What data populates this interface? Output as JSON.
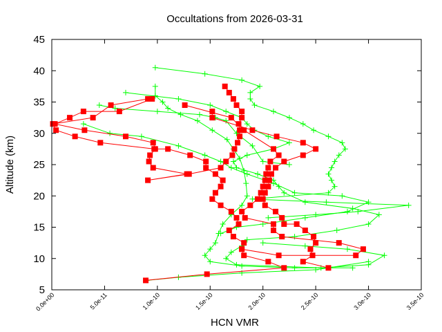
{
  "chart_data": {
    "type": "line",
    "title": "Occultations from 2026-03-31",
    "xlabel": "HCN VMR",
    "ylabel": "Altitude (km)",
    "xlim": [
      0,
      3.5e-10
    ],
    "ylim": [
      5,
      45
    ],
    "grid": false,
    "x_ticks": [
      0,
      5e-11,
      1e-10,
      1.5e-10,
      2e-10,
      2.5e-10,
      3e-10,
      3.5e-10
    ],
    "x_tick_labels": [
      "0.0e+00",
      "5.0e-11",
      "1.0e-10",
      "1.5e-10",
      "2.0e-10",
      "2.5e-10",
      "3.0e-10",
      "3.5e-10"
    ],
    "y_ticks": [
      5,
      10,
      15,
      20,
      25,
      30,
      35,
      40,
      45
    ],
    "y_tick_labels": [
      "5",
      "10",
      "15",
      "20",
      "25",
      "30",
      "35",
      "40",
      "45"
    ],
    "colors": {
      "red_series": "#ff0000",
      "green_series": "#00ff00"
    },
    "series": [
      {
        "color": "#ff0000",
        "marker": "square",
        "points": [
          [
            9.1e-11,
            35.5
          ],
          [
            5.6e-11,
            34.5
          ],
          [
            3.9e-11,
            32.5
          ],
          [
            1e-12,
            31.5
          ],
          [
            4e-12,
            30.5
          ],
          [
            2.2e-11,
            29.5
          ],
          [
            4.6e-11,
            28.5
          ],
          [
            9.7e-11,
            27.5
          ],
          [
            1.1e-10,
            27.5
          ],
          [
            1.31e-10,
            26.5
          ],
          [
            1.46e-10,
            25.5
          ],
          [
            1.46e-10,
            24.5
          ],
          [
            1.55e-10,
            23.5
          ],
          [
            1.62e-10,
            22.5
          ],
          [
            1.6e-10,
            21.5
          ],
          [
            1.55e-10,
            20.5
          ],
          [
            1.52e-10,
            19.5
          ],
          [
            1.6e-10,
            18.5
          ],
          [
            1.7e-10,
            17.5
          ],
          [
            1.75e-10,
            16.5
          ],
          [
            1.77e-10,
            15.5
          ],
          [
            1.68e-10,
            14.5
          ],
          [
            1.72e-10,
            13.5
          ],
          [
            1.82e-10,
            12.5
          ],
          [
            1.8e-10,
            11.5
          ],
          [
            1.82e-10,
            10.5
          ],
          [
            2.05e-10,
            9.5
          ],
          [
            2.2e-10,
            8.5
          ],
          [
            1.47e-10,
            7.5
          ],
          [
            8.9e-11,
            6.5
          ]
        ]
      },
      {
        "color": "#ff0000",
        "marker": "square",
        "points": [
          [
            9.5e-11,
            35.5
          ],
          [
            6.4e-11,
            33.5
          ],
          [
            3e-11,
            33.5
          ],
          [
            1.7e-11,
            32.5
          ],
          [
            3e-12,
            31.5
          ],
          [
            3.1e-11,
            30.5
          ],
          [
            7e-11,
            29.5
          ],
          [
            9.6e-11,
            28.5
          ],
          [
            9.8e-11,
            27.5
          ],
          [
            9.3e-11,
            26.5
          ],
          [
            9.2e-11,
            25.5
          ],
          [
            9.6e-11,
            24.5
          ],
          [
            1.28e-10,
            23.5
          ],
          [
            9.1e-11,
            22.5
          ],
          [
            1.3e-10,
            23.5
          ],
          [
            1.6e-10,
            24.5
          ],
          [
            1.65e-10,
            25.5
          ],
          [
            1.71e-10,
            26.5
          ],
          [
            1.73e-10,
            27.5
          ],
          [
            1.76e-10,
            28.5
          ],
          [
            1.78e-10,
            29.5
          ],
          [
            1.78e-10,
            30.5
          ],
          [
            1.77e-10,
            31.5
          ],
          [
            1.8e-10,
            32.5
          ],
          [
            1.8e-10,
            33.5
          ],
          [
            1.75e-10,
            34.5
          ],
          [
            1.72e-10,
            35.5
          ],
          [
            1.68e-10,
            36.5
          ],
          [
            1.64e-10,
            37.5
          ]
        ]
      },
      {
        "color": "#ff0000",
        "marker": "square",
        "points": [
          [
            1.52e-10,
            33.5
          ],
          [
            1.52e-10,
            32.5
          ],
          [
            1.9e-10,
            30.5
          ],
          [
            2.13e-10,
            29.5
          ],
          [
            2.38e-10,
            28.5
          ],
          [
            2.5e-10,
            27.5
          ],
          [
            2.38e-10,
            26.5
          ],
          [
            2.2e-10,
            25.5
          ],
          [
            2.12e-10,
            24.5
          ],
          [
            2.08e-10,
            23.5
          ],
          [
            2.06e-10,
            22.5
          ],
          [
            2.05e-10,
            21.5
          ],
          [
            2.02e-10,
            20.5
          ],
          [
            2e-10,
            19.5
          ],
          [
            2.02e-10,
            18.5
          ],
          [
            2.12e-10,
            17.5
          ],
          [
            2.18e-10,
            16.5
          ],
          [
            2.2e-10,
            15.5
          ],
          [
            2.32e-10,
            15.5
          ],
          [
            2.4e-10,
            14.5
          ],
          [
            2.48e-10,
            13.5
          ],
          [
            2.5e-10,
            12.5
          ],
          [
            2.45e-10,
            11.5
          ],
          [
            2.47e-10,
            10.5
          ],
          [
            2.38e-10,
            9.5
          ],
          [
            2.62e-10,
            8.5
          ]
        ]
      },
      {
        "color": "#ff0000",
        "marker": "square",
        "points": [
          [
            1.26e-10,
            34.5
          ],
          [
            1.7e-10,
            32.5
          ],
          [
            1.82e-10,
            30.5
          ],
          [
            2.1e-10,
            27.5
          ],
          [
            2.15e-10,
            26.5
          ],
          [
            2.07e-10,
            25.5
          ],
          [
            2.05e-10,
            24.5
          ],
          [
            2.03e-10,
            23.5
          ],
          [
            2.02e-10,
            22.5
          ],
          [
            2e-10,
            21.5
          ],
          [
            1.98e-10,
            20.5
          ],
          [
            1.95e-10,
            19.5
          ],
          [
            1.88e-10,
            18.5
          ],
          [
            1.8e-10,
            17.5
          ],
          [
            1.83e-10,
            16.5
          ],
          [
            2.1e-10,
            15.5
          ],
          [
            2.1e-10,
            14.5
          ],
          [
            2.18e-10,
            13.5
          ],
          [
            2.72e-10,
            12.5
          ],
          [
            2.95e-10,
            11.5
          ],
          [
            2.88e-10,
            10.5
          ],
          [
            2.15e-10,
            10.5
          ],
          [
            1.8e-10,
            11.5
          ]
        ]
      },
      {
        "color": "#00ff00",
        "marker": "plus",
        "points": [
          [
            9.8e-11,
            40.5
          ],
          [
            1.45e-10,
            39.5
          ],
          [
            1.8e-10,
            38.5
          ],
          [
            1.97e-10,
            37.5
          ],
          [
            1.88e-10,
            36.5
          ],
          [
            1.88e-10,
            35.5
          ],
          [
            1.92e-10,
            34.5
          ],
          [
            2.1e-10,
            33.5
          ],
          [
            2.25e-10,
            32.5
          ],
          [
            2.38e-10,
            31.5
          ],
          [
            2.48e-10,
            30.5
          ],
          [
            2.62e-10,
            29.5
          ],
          [
            2.75e-10,
            28.5
          ],
          [
            2.78e-10,
            27.5
          ],
          [
            2.72e-10,
            26.5
          ],
          [
            2.68e-10,
            25.5
          ],
          [
            2.65e-10,
            24.5
          ],
          [
            2.62e-10,
            23.5
          ],
          [
            2.65e-10,
            22.5
          ],
          [
            2.68e-10,
            21.5
          ],
          [
            2.62e-10,
            20.5
          ],
          [
            1.9e-10,
            19.5
          ],
          [
            2.6e-10,
            19.0
          ],
          [
            3.38e-10,
            18.5
          ],
          [
            2.9e-10,
            17.5
          ],
          [
            2.5e-10,
            17.0
          ],
          [
            2.05e-10,
            16.5
          ]
        ]
      },
      {
        "color": "#00ff00",
        "marker": "plus",
        "points": [
          [
            7e-11,
            36.5
          ],
          [
            1.2e-10,
            35.5
          ],
          [
            1.5e-10,
            34.5
          ],
          [
            1.65e-10,
            33.5
          ],
          [
            1.8e-10,
            32.5
          ],
          [
            1.85e-10,
            31.5
          ],
          [
            1.92e-10,
            30.5
          ],
          [
            2.05e-10,
            29.5
          ],
          [
            2.25e-10,
            28.5
          ],
          [
            2.1e-10,
            27.5
          ],
          [
            1.85e-10,
            26.5
          ],
          [
            1.72e-10,
            25.5
          ],
          [
            1.75e-10,
            24.5
          ],
          [
            1.95e-10,
            23.5
          ],
          [
            2.1e-10,
            22.5
          ],
          [
            2.15e-10,
            21.5
          ],
          [
            2.2e-10,
            20.5
          ],
          [
            2.4e-10,
            19.0
          ],
          [
            2.85e-10,
            18.0
          ],
          [
            3.1e-10,
            17.0
          ],
          [
            3e-10,
            15.5
          ],
          [
            2.7e-10,
            14.5
          ],
          [
            2.3e-10,
            13.5
          ],
          [
            1.85e-10,
            13.0
          ],
          [
            1.8e-10,
            12.0
          ],
          [
            1.7e-10,
            11.0
          ],
          [
            1.65e-10,
            10.0
          ],
          [
            1.75e-10,
            9.0
          ],
          [
            2.55e-10,
            8.5
          ],
          [
            3e-10,
            9.0
          ],
          [
            3.15e-10,
            10.5
          ],
          [
            2.8e-10,
            11.5
          ],
          [
            2.4e-10,
            12.0
          ],
          [
            2e-10,
            12.5
          ]
        ]
      },
      {
        "color": "#00ff00",
        "marker": "plus",
        "points": [
          [
            9.8e-11,
            37.5
          ],
          [
            9.8e-11,
            36.0
          ],
          [
            1.05e-10,
            35.0
          ],
          [
            1.1e-10,
            34.0
          ],
          [
            1.22e-10,
            33.0
          ],
          [
            1.38e-10,
            32.0
          ],
          [
            1.52e-10,
            30.5
          ],
          [
            1.66e-10,
            29.0
          ],
          [
            1.72e-10,
            27.5
          ],
          [
            1.78e-10,
            26.0
          ],
          [
            1.82e-10,
            24.0
          ],
          [
            1.84e-10,
            22.0
          ],
          [
            1.85e-10,
            20.0
          ],
          [
            1.8e-10,
            18.5
          ],
          [
            1.7e-10,
            17.0
          ],
          [
            1.62e-10,
            15.5
          ],
          [
            1.58e-10,
            14.0
          ],
          [
            1.55e-10,
            12.5
          ],
          [
            1.5e-10,
            11.5
          ],
          [
            1.45e-10,
            10.5
          ],
          [
            1.5e-10,
            9.5
          ],
          [
            1.8e-10,
            8.8
          ],
          [
            2.3e-10,
            8.5
          ],
          [
            2.85e-10,
            8.5
          ]
        ]
      },
      {
        "color": "#00ff00",
        "marker": "plus",
        "points": [
          [
            4.5e-11,
            34.5
          ],
          [
            6e-11,
            34.0
          ],
          [
            1e-10,
            33.5
          ],
          [
            1.4e-10,
            33.0
          ],
          [
            1.55e-10,
            32.5
          ],
          [
            1.65e-10,
            32.0
          ],
          [
            1.75e-10,
            30.0
          ],
          [
            1.9e-10,
            28.0
          ],
          [
            2e-10,
            25.5
          ],
          [
            2.25e-10,
            25.0
          ]
        ]
      },
      {
        "color": "#00ff00",
        "marker": "plus",
        "points": [
          [
            3e-11,
            31.5
          ],
          [
            5.5e-11,
            30.0
          ],
          [
            8.5e-11,
            29.5
          ],
          [
            1.2e-10,
            28.0
          ],
          [
            1.45e-10,
            26.5
          ],
          [
            1.6e-10,
            25.5
          ],
          [
            1.7e-10,
            24.5
          ],
          [
            1.85e-10,
            23.5
          ],
          [
            2.1e-10,
            22.0
          ],
          [
            2.3e-10,
            20.5
          ],
          [
            2.75e-10,
            20.0
          ],
          [
            3e-10,
            19.0
          ],
          [
            2.8e-10,
            17.5
          ],
          [
            2.4e-10,
            16.5
          ],
          [
            2e-10,
            15.5
          ],
          [
            1.75e-10,
            15.0
          ],
          [
            1.6e-10,
            14.0
          ]
        ]
      },
      {
        "color": "#00ff00",
        "marker": "plus",
        "points": [
          [
            9e-11,
            6.5
          ],
          [
            1.2e-10,
            7.0
          ],
          [
            1.8e-10,
            7.7
          ],
          [
            2.5e-10,
            8.2
          ],
          [
            3e-10,
            9.5
          ]
        ]
      }
    ]
  }
}
